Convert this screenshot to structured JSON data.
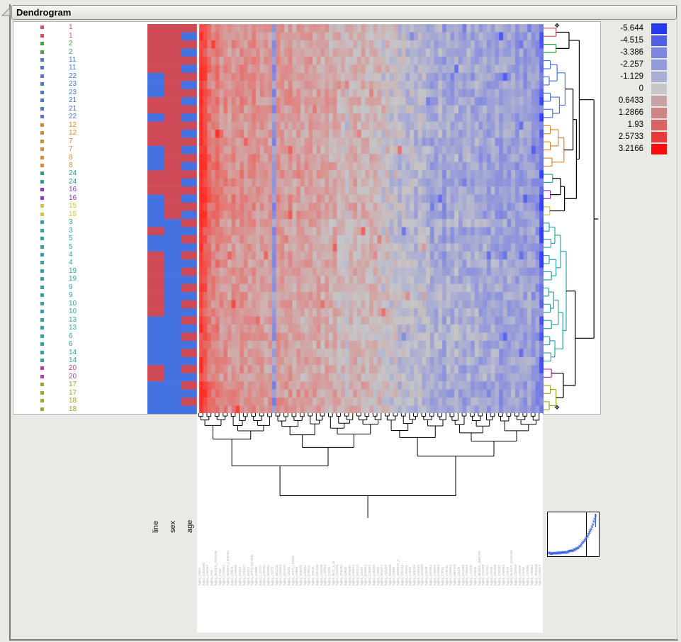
{
  "window": {
    "title": "Dendrogram"
  },
  "palette": {
    "red": "#d4505a",
    "green": "#3fa33f",
    "blue": "#4a76de",
    "orange": "#dd8a28",
    "jade": "#26a383",
    "purple": "#9a30d0",
    "yellow": "#d6c62f",
    "teal": "#2aa6ac",
    "magenta": "#c433bc",
    "olive": "#9ea825",
    "black": "#000000",
    "cat_red": "#cf4a57",
    "cat_blue": "#4472e0"
  },
  "rows": [
    {
      "label": "1",
      "c": "red"
    },
    {
      "label": "1",
      "c": "red"
    },
    {
      "label": "2",
      "c": "green"
    },
    {
      "label": "2",
      "c": "green"
    },
    {
      "label": "11",
      "c": "blue"
    },
    {
      "label": "11",
      "c": "blue"
    },
    {
      "label": "22",
      "c": "blue"
    },
    {
      "label": "23",
      "c": "blue"
    },
    {
      "label": "23",
      "c": "blue"
    },
    {
      "label": "21",
      "c": "blue"
    },
    {
      "label": "21",
      "c": "blue"
    },
    {
      "label": "22",
      "c": "blue"
    },
    {
      "label": "12",
      "c": "orange"
    },
    {
      "label": "12",
      "c": "orange"
    },
    {
      "label": "7",
      "c": "orange"
    },
    {
      "label": "7",
      "c": "orange"
    },
    {
      "label": "8",
      "c": "orange"
    },
    {
      "label": "8",
      "c": "orange"
    },
    {
      "label": "24",
      "c": "jade"
    },
    {
      "label": "24",
      "c": "jade"
    },
    {
      "label": "16",
      "c": "purple"
    },
    {
      "label": "16",
      "c": "purple"
    },
    {
      "label": "15",
      "c": "yellow"
    },
    {
      "label": "15",
      "c": "yellow"
    },
    {
      "label": "3",
      "c": "teal"
    },
    {
      "label": "3",
      "c": "teal"
    },
    {
      "label": "5",
      "c": "teal"
    },
    {
      "label": "5",
      "c": "teal"
    },
    {
      "label": "4",
      "c": "teal"
    },
    {
      "label": "4",
      "c": "teal"
    },
    {
      "label": "19",
      "c": "teal"
    },
    {
      "label": "19",
      "c": "teal"
    },
    {
      "label": "9",
      "c": "teal"
    },
    {
      "label": "9",
      "c": "teal"
    },
    {
      "label": "10",
      "c": "teal"
    },
    {
      "label": "10",
      "c": "teal"
    },
    {
      "label": "13",
      "c": "teal"
    },
    {
      "label": "13",
      "c": "teal"
    },
    {
      "label": "6",
      "c": "teal"
    },
    {
      "label": "6",
      "c": "teal"
    },
    {
      "label": "14",
      "c": "teal"
    },
    {
      "label": "14",
      "c": "teal"
    },
    {
      "label": "20",
      "c": "magenta"
    },
    {
      "label": "20",
      "c": "magenta"
    },
    {
      "label": "17",
      "c": "olive"
    },
    {
      "label": "17",
      "c": "olive"
    },
    {
      "label": "18",
      "c": "olive"
    },
    {
      "label": "18",
      "c": "olive"
    }
  ],
  "legend": {
    "entries": [
      {
        "value": "-5.644",
        "color": "#2438ee"
      },
      {
        "value": "-4.515",
        "color": "#5060e4"
      },
      {
        "value": "-3.386",
        "color": "#7b86de"
      },
      {
        "value": "-2.257",
        "color": "#929cda"
      },
      {
        "value": "-1.129",
        "color": "#a9aed2"
      },
      {
        "value": "0",
        "color": "#c6c6c6"
      },
      {
        "value": "0.6433",
        "color": "#c7a1a1"
      },
      {
        "value": "1.2866",
        "color": "#cf8484"
      },
      {
        "value": "1.93",
        "color": "#d96363"
      },
      {
        "value": "2.5733",
        "color": "#e83a3a"
      },
      {
        "value": "3.2166",
        "color": "#fb0d0d"
      }
    ]
  },
  "axis_labels": [
    "line",
    "sex",
    "age"
  ],
  "handles": {
    "top": "❖",
    "bottom": "❖"
  },
  "row_tree": {
    "h": 0.89,
    "c": "black",
    "ch": [
      {
        "h": 0.63,
        "c": "black",
        "ch": [
          {
            "h": 0.45,
            "c": "black",
            "ch": [
              {
                "h": 0.22,
                "c": "red",
                "ch": [
                  0,
                  1
                ]
              },
              {
                "h": 0.22,
                "c": "green",
                "ch": [
                  2,
                  3
                ]
              }
            ]
          },
          {
            "h": 0.58,
            "c": "black",
            "ch": [
              {
                "h": 0.52,
                "c": "black",
                "ch": [
                  {
                    "h": 0.38,
                    "c": "blue",
                    "ch": [
                      {
                        "h": 0.24,
                        "c": "blue",
                        "ch": [
                          {
                            "h": 0.12,
                            "c": "blue",
                            "ch": [
                              4,
                              5
                            ]
                          },
                          {
                            "h": 0.1,
                            "c": "blue",
                            "ch": [
                              6,
                              7
                            ]
                          }
                        ]
                      },
                      {
                        "h": 0.28,
                        "c": "blue",
                        "ch": [
                          {
                            "h": 0.12,
                            "c": "blue",
                            "ch": [
                              8,
                              9
                            ]
                          },
                          {
                            "h": 0.16,
                            "c": "blue",
                            "ch": [
                              10,
                              11
                            ]
                          }
                        ]
                      }
                    ]
                  },
                  {
                    "h": 0.36,
                    "c": "orange",
                    "ch": [
                      {
                        "h": 0.26,
                        "c": "orange",
                        "ch": [
                          {
                            "h": 0.12,
                            "c": "orange",
                            "ch": [
                              12,
                              13
                            ]
                          },
                          {
                            "h": 0.12,
                            "c": "orange",
                            "ch": [
                              14,
                              15
                            ]
                          }
                        ]
                      },
                      {
                        "h": 0.15,
                        "c": "orange",
                        "ch": [
                          16,
                          17
                        ]
                      }
                    ]
                  }
                ]
              },
              {
                "h": 0.37,
                "c": "black",
                "ch": [
                  {
                    "h": 0.3,
                    "c": "black",
                    "ch": [
                      {
                        "h": 0.16,
                        "c": "jade",
                        "ch": [
                          18,
                          19
                        ]
                      },
                      {
                        "h": 0.12,
                        "c": "purple",
                        "ch": [
                          20,
                          21
                        ]
                      }
                    ]
                  },
                  {
                    "h": 0.11,
                    "c": "yellow",
                    "ch": [
                      22,
                      23
                    ]
                  }
                ]
              }
            ]
          }
        ]
      },
      {
        "h": 0.56,
        "c": "black",
        "ch": [
          {
            "h": 0.4,
            "c": "teal",
            "ch": [
              {
                "h": 0.3,
                "c": "teal",
                "ch": [
                  {
                    "h": 0.2,
                    "c": "teal",
                    "ch": [
                      {
                        "h": 0.1,
                        "c": "teal",
                        "ch": [
                          24,
                          25
                        ]
                      },
                      {
                        "h": 0.13,
                        "c": "teal",
                        "ch": [
                          26,
                          27
                        ]
                      }
                    ]
                  },
                  {
                    "h": 0.22,
                    "c": "teal",
                    "ch": [
                      {
                        "h": 0.1,
                        "c": "teal",
                        "ch": [
                          28,
                          29
                        ]
                      },
                      {
                        "h": 0.14,
                        "c": "teal",
                        "ch": [
                          30,
                          31
                        ]
                      }
                    ]
                  }
                ]
              },
              {
                "h": 0.34,
                "c": "teal",
                "ch": [
                  {
                    "h": 0.26,
                    "c": "teal",
                    "ch": [
                      {
                        "h": 0.18,
                        "c": "teal",
                        "ch": [
                          {
                            "h": 0.09,
                            "c": "teal",
                            "ch": [
                              32,
                              33
                            ]
                          },
                          {
                            "h": 0.12,
                            "c": "teal",
                            "ch": [
                              34,
                              35
                            ]
                          }
                        ]
                      },
                      {
                        "h": 0.14,
                        "c": "teal",
                        "ch": [
                          36,
                          37
                        ]
                      }
                    ]
                  },
                  {
                    "h": 0.2,
                    "c": "teal",
                    "ch": [
                      {
                        "h": 0.11,
                        "c": "teal",
                        "ch": [
                          38,
                          39
                        ]
                      },
                      {
                        "h": 0.13,
                        "c": "teal",
                        "ch": [
                          40,
                          41
                        ]
                      }
                    ]
                  }
                ]
              }
            ]
          },
          {
            "h": 0.35,
            "c": "black",
            "ch": [
              {
                "h": 0.14,
                "c": "magenta",
                "ch": [
                  42,
                  43
                ]
              },
              {
                "h": 0.22,
                "c": "olive",
                "ch": [
                  {
                    "h": 0.12,
                    "c": "olive",
                    "ch": [
                      44,
                      45
                    ]
                  },
                  {
                    "h": 0.1,
                    "c": "olive",
                    "ch": [
                      46,
                      47
                    ]
                  }
                ]
              }
            ]
          }
        ]
      }
    ]
  },
  "chart_data": {
    "type": "heatmap",
    "title": "Dendrogram",
    "rows": 48,
    "data_columns": 85,
    "row_labels": [
      "1",
      "1",
      "2",
      "2",
      "11",
      "11",
      "22",
      "23",
      "23",
      "21",
      "21",
      "22",
      "12",
      "12",
      "7",
      "7",
      "8",
      "8",
      "24",
      "24",
      "16",
      "16",
      "15",
      "15",
      "3",
      "3",
      "5",
      "5",
      "4",
      "4",
      "19",
      "19",
      "9",
      "9",
      "10",
      "10",
      "13",
      "13",
      "6",
      "6",
      "14",
      "14",
      "20",
      "20",
      "17",
      "17",
      "18",
      "18"
    ],
    "annotation_columns": [
      "line",
      "sex",
      "age"
    ],
    "annotation_line_blue_rows": [
      6,
      7,
      8,
      11,
      15,
      16,
      17,
      21,
      22,
      23,
      24,
      26,
      27,
      36,
      37,
      38,
      39,
      40,
      41,
      44,
      45,
      46,
      47
    ],
    "annotation_sex_split_row": 24,
    "annotation_age_blue_rows": "odd",
    "legend_scale": {
      "values": [
        -5.644,
        -4.515,
        -3.386,
        -2.257,
        -1.129,
        0,
        0.6433,
        1.2866,
        1.93,
        2.5733,
        3.2166
      ],
      "colors": [
        "#2438ee",
        "#5060e4",
        "#7b86de",
        "#929cda",
        "#a9aed2",
        "#c6c6c6",
        "#c7a1a1",
        "#cf8484",
        "#d96363",
        "#e83a3a",
        "#fb0d0d"
      ]
    },
    "column_mean_profile": [
      0.95,
      0.8,
      0.55,
      0.45,
      0.5,
      0.35,
      0.4,
      0.3,
      0.35,
      0.3,
      0.38,
      0.32,
      0.3,
      0.35,
      0.28,
      0.3,
      0.25,
      0.28,
      -0.35,
      0.3,
      0.28,
      0.25,
      0.3,
      0.22,
      0.28,
      0.2,
      0.25,
      0.3,
      0.2,
      0.25,
      0.18,
      0.22,
      0.15,
      0.2,
      0.12,
      0.1,
      0.05,
      0.15,
      0.18,
      0.12,
      0.15,
      0.1,
      0.12,
      0.08,
      0.1,
      0,
      0.05,
      -0.05,
      0,
      -0.08,
      -0.05,
      -0.1,
      -0.05,
      -0.12,
      -0.08,
      -0.1,
      -0.15,
      -0.25,
      -0.2,
      -0.15,
      -0.3,
      -0.2,
      -0.25,
      -0.15,
      -0.2,
      -0.25,
      -0.18,
      -0.22,
      -0.2,
      -0.25,
      -0.22,
      -0.28,
      -0.2,
      -0.25,
      -0.3,
      -0.22,
      -0.25,
      -0.2,
      -0.28,
      -0.25,
      -0.3,
      -0.25,
      -0.28,
      -0.35,
      -0.55
    ],
    "row_intensity": [
      1,
      1,
      1,
      1,
      1,
      1,
      1,
      1,
      1.1,
      1.1,
      1,
      1,
      1,
      1,
      1,
      1,
      1.15,
      1.15,
      1.15,
      1.15,
      1.15,
      1.15,
      1.15,
      1.15,
      0.95,
      0.95,
      0.95,
      0.95,
      0.95,
      0.95,
      0.95,
      0.95,
      0.9,
      0.9,
      0.9,
      0.9,
      0.9,
      0.9,
      0.9,
      0.9,
      0.9,
      0.9,
      0.9,
      0.9,
      1.1,
      1.1,
      1.1,
      1.1
    ],
    "row_dendrogram_position": "right",
    "column_dendrogram_position": "bottom",
    "inset": "clustering-distance-scree-curve"
  },
  "column_labels": [
    "hgfcs_NM01",
    "hgfcs_C031B80",
    "hgfcs_C03567",
    "hgfcs_A49",
    "hgfcs_BioDtrA_GM3238",
    "hgfcs_F263",
    "hgfcs_C03647",
    "hgfcs_BioDtrA_L000769",
    "hgfcs_C0475",
    "hgfcs_C03188",
    "hgfcs_D1023",
    "hgfcs_C02117",
    "hgfcs_B4412",
    "hgfcs_AFFX_M27830",
    "hgfcs_C0988",
    "hgfcs_L19737",
    "hgfcs_C05321",
    "hgfcs_X03205",
    "hgfcs_C0772",
    "hgfcs_B61218",
    "hgfcs_C04533",
    "hgfcs_M13207",
    "hgfcs_C0281",
    "hgfcs_AFFX_L32020",
    "hgfcs_C0654",
    "hgfcs_V00875",
    "hgfcs_C03811",
    "hgfcs_D38112",
    "hgfcs_C0246",
    "hgfcs_M97496",
    "hgfcs_C05528",
    "hgfcs_U37012",
    "hgfcs_C0319",
    "hgfcs_BioC_5_at",
    "hgfcs_C04106",
    "hgfcs_X56932",
    "hgfcs_C0833",
    "hgfcs_K02566",
    "hgfcs_C03914",
    "hgfcs_M33197",
    "hgfcs_C0157",
    "hgfcs_D49824",
    "hgfcs_C05237",
    "hgfcs_U48730",
    "hgfcs_C0902",
    "hgfcs_X01677",
    "hgfcs_C04418",
    "hgfcs_M10098",
    "hgfcs_C0563",
    "hgfcs_AB00115_3",
    "hgfcs_C03722",
    "hgfcs_L38503",
    "hgfcs_C0694",
    "hgfcs_X69150",
    "hgfcs_C05140",
    "hgfcs_M22960",
    "hgfcs_C0438",
    "hgfcs_D87953",
    "hgfcs_C03075",
    "hgfcs_U70063",
    "hgfcs_C0781",
    "hgfcs_X79234",
    "hgfcs_C04952",
    "hgfcs_M81768",
    "hgfcs_C0325",
    "hgfcs_D13666",
    "hgfcs_C05619",
    "hgfcs_L13210",
    "hgfcs_C0846",
    "hgfcs_BioDtrA_GM7188",
    "hgfcs_C03490",
    "hgfcs_X67951",
    "hgfcs_C0218",
    "hgfcs_M64936",
    "hgfcs_C04287",
    "hgfcs_U09953",
    "hgfcs_C0573",
    "hgfcs_BioDtrA_D410133",
    "hgfcs_C03958",
    "hgfcs_L08069",
    "hgfcs_C0764",
    "hgfcs_X13956",
    "hgfcs_C05084",
    "hgfcs_RNAtrmt",
    "hgfcs_C04619"
  ]
}
